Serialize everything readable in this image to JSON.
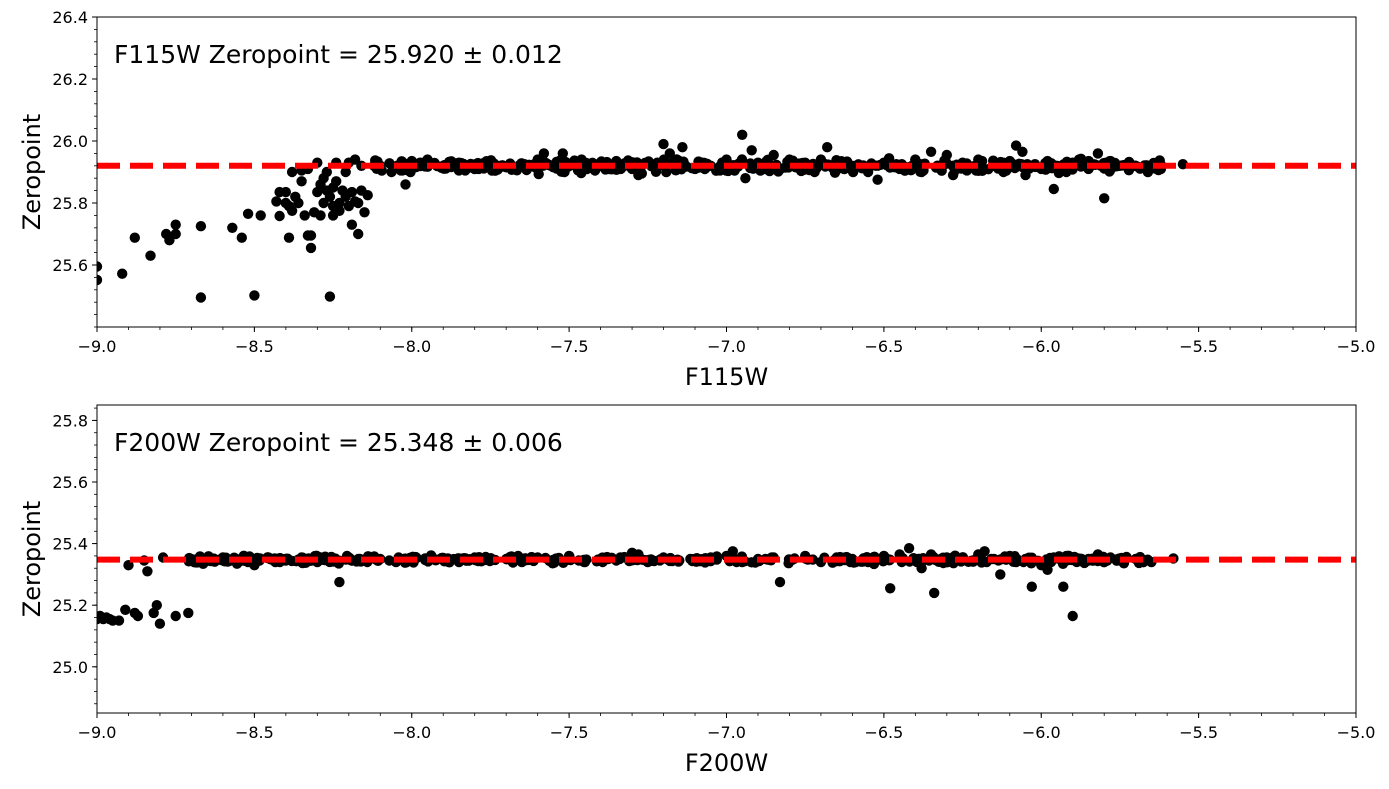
{
  "chart_data": [
    {
      "type": "scatter",
      "annotation": "F115W Zeropoint = 25.920 ± 0.012",
      "xlabel": "F115W",
      "ylabel": "Zeropoint",
      "xlim": [
        -9.0,
        -5.0
      ],
      "ylim": [
        25.4,
        26.4
      ],
      "xticks": [
        -9.0,
        -8.5,
        -8.0,
        -7.5,
        -7.0,
        -6.5,
        -6.0,
        -5.5,
        -5.0
      ],
      "xtick_labels": [
        "−9.0",
        "−8.5",
        "−8.0",
        "−7.5",
        "−7.0",
        "−6.5",
        "−6.0",
        "−5.5",
        "−5.0"
      ],
      "yticks": [
        25.6,
        25.8,
        26.0,
        26.2,
        26.4
      ],
      "ytick_labels": [
        "25.6",
        "25.8",
        "26.0",
        "26.2",
        "26.4"
      ],
      "zeropoint_line": {
        "y": 25.92,
        "style": "dashed",
        "color": "#ff0000"
      },
      "point_color": "#000000",
      "grid": false,
      "points": [
        [
          -9.0,
          25.595
        ],
        [
          -9.0,
          25.552
        ],
        [
          -8.92,
          25.572
        ],
        [
          -8.88,
          25.688
        ],
        [
          -8.83,
          25.63
        ],
        [
          -8.78,
          25.7
        ],
        [
          -8.77,
          25.68
        ],
        [
          -8.75,
          25.73
        ],
        [
          -8.75,
          25.7
        ],
        [
          -8.67,
          25.725
        ],
        [
          -8.67,
          25.495
        ],
        [
          -8.57,
          25.72
        ],
        [
          -8.54,
          25.688
        ],
        [
          -8.52,
          25.765
        ],
        [
          -8.5,
          25.502
        ],
        [
          -8.48,
          25.76
        ],
        [
          -8.43,
          25.805
        ],
        [
          -8.42,
          25.758
        ],
        [
          -8.42,
          25.835
        ],
        [
          -8.4,
          25.8
        ],
        [
          -8.4,
          25.835
        ],
        [
          -8.39,
          25.79
        ],
        [
          -8.39,
          25.688
        ],
        [
          -8.38,
          25.9
        ],
        [
          -8.38,
          25.775
        ],
        [
          -8.37,
          25.82
        ],
        [
          -8.36,
          25.8
        ],
        [
          -8.35,
          25.87
        ],
        [
          -8.35,
          25.905
        ],
        [
          -8.34,
          25.76
        ],
        [
          -8.33,
          25.695
        ],
        [
          -8.33,
          25.91
        ],
        [
          -8.32,
          25.655
        ],
        [
          -8.32,
          25.695
        ],
        [
          -8.31,
          25.77
        ],
        [
          -8.3,
          25.835
        ],
        [
          -8.3,
          25.93
        ],
        [
          -8.29,
          25.86
        ],
        [
          -8.29,
          25.76
        ],
        [
          -8.28,
          25.88
        ],
        [
          -8.28,
          25.8
        ],
        [
          -8.27,
          25.84
        ],
        [
          -8.27,
          25.9
        ],
        [
          -8.26,
          25.82
        ],
        [
          -8.26,
          25.498
        ],
        [
          -8.25,
          25.85
        ],
        [
          -8.25,
          25.79
        ],
        [
          -8.25,
          25.76
        ],
        [
          -8.24,
          25.87
        ],
        [
          -8.24,
          25.93
        ],
        [
          -8.23,
          25.8
        ],
        [
          -8.23,
          25.775
        ],
        [
          -8.22,
          25.84
        ],
        [
          -8.21,
          25.82
        ],
        [
          -8.21,
          25.9
        ],
        [
          -8.2,
          25.79
        ],
        [
          -8.2,
          25.93
        ],
        [
          -8.19,
          25.73
        ],
        [
          -8.19,
          25.835
        ],
        [
          -8.18,
          25.805
        ],
        [
          -8.18,
          25.94
        ],
        [
          -8.17,
          25.7
        ],
        [
          -8.17,
          25.8
        ],
        [
          -8.16,
          25.84
        ],
        [
          -8.16,
          25.92
        ],
        [
          -8.15,
          25.77
        ],
        [
          -8.14,
          25.825
        ],
        [
          -8.12,
          25.92
        ],
        [
          -8.1,
          25.92
        ],
        [
          -8.03,
          25.905
        ],
        [
          -8.02,
          25.86
        ],
        [
          -8.0,
          25.935
        ],
        [
          -7.95,
          25.94
        ],
        [
          -7.9,
          25.92
        ],
        [
          -7.85,
          25.93
        ],
        [
          -7.8,
          25.91
        ],
        [
          -7.75,
          25.935
        ],
        [
          -7.7,
          25.915
        ],
        [
          -7.65,
          25.92
        ],
        [
          -7.6,
          25.94
        ],
        [
          -7.58,
          25.96
        ],
        [
          -7.55,
          25.915
        ],
        [
          -7.52,
          25.96
        ],
        [
          -7.5,
          25.925
        ],
        [
          -7.45,
          25.92
        ],
        [
          -7.4,
          25.93
        ],
        [
          -7.35,
          25.935
        ],
        [
          -7.3,
          25.91
        ],
        [
          -7.28,
          25.89
        ],
        [
          -7.25,
          25.93
        ],
        [
          -7.22,
          25.93
        ],
        [
          -7.2,
          25.99
        ],
        [
          -7.18,
          25.96
        ],
        [
          -7.15,
          25.935
        ],
        [
          -7.14,
          25.98
        ],
        [
          -7.1,
          25.91
        ],
        [
          -7.05,
          25.92
        ],
        [
          -7.0,
          25.94
        ],
        [
          -6.98,
          25.91
        ],
        [
          -6.95,
          26.02
        ],
        [
          -6.94,
          25.88
        ],
        [
          -6.92,
          25.97
        ],
        [
          -6.9,
          25.93
        ],
        [
          -6.88,
          25.91
        ],
        [
          -6.85,
          25.955
        ],
        [
          -6.8,
          25.94
        ],
        [
          -6.78,
          25.915
        ],
        [
          -6.75,
          25.93
        ],
        [
          -6.72,
          25.9
        ],
        [
          -6.7,
          25.94
        ],
        [
          -6.68,
          25.98
        ],
        [
          -6.65,
          25.93
        ],
        [
          -6.6,
          25.92
        ],
        [
          -6.55,
          25.9
        ],
        [
          -6.52,
          25.875
        ],
        [
          -6.5,
          25.93
        ],
        [
          -6.45,
          25.91
        ],
        [
          -6.4,
          25.94
        ],
        [
          -6.38,
          25.9
        ],
        [
          -6.35,
          25.965
        ],
        [
          -6.32,
          25.91
        ],
        [
          -6.3,
          25.955
        ],
        [
          -6.28,
          25.89
        ],
        [
          -6.25,
          25.93
        ],
        [
          -6.22,
          25.915
        ],
        [
          -6.2,
          25.94
        ],
        [
          -6.15,
          25.92
        ],
        [
          -6.12,
          25.9
        ],
        [
          -6.1,
          25.935
        ],
        [
          -6.08,
          25.985
        ],
        [
          -6.06,
          25.965
        ],
        [
          -6.05,
          25.89
        ],
        [
          -6.02,
          25.925
        ],
        [
          -6.0,
          25.91
        ],
        [
          -5.98,
          25.935
        ],
        [
          -5.96,
          25.845
        ],
        [
          -5.95,
          25.92
        ],
        [
          -5.92,
          25.9
        ],
        [
          -5.9,
          25.93
        ],
        [
          -5.88,
          25.94
        ],
        [
          -5.85,
          25.91
        ],
        [
          -5.82,
          25.96
        ],
        [
          -5.8,
          25.815
        ],
        [
          -5.78,
          25.935
        ],
        [
          -5.75,
          25.92
        ],
        [
          -5.72,
          25.91
        ],
        [
          -5.7,
          25.92
        ],
        [
          -5.65,
          25.92
        ],
        [
          -5.62,
          25.91
        ],
        [
          -5.55,
          25.925
        ]
      ],
      "dense_band": {
        "x_range": [
          -8.12,
          -5.62
        ],
        "y_center": 25.92,
        "y_spread": 0.02
      }
    },
    {
      "type": "scatter",
      "annotation": "F200W Zeropoint = 25.348 ± 0.006",
      "xlabel": "F200W",
      "ylabel": "Zeropoint",
      "xlim": [
        -9.0,
        -5.0
      ],
      "ylim": [
        24.85,
        25.85
      ],
      "xticks": [
        -9.0,
        -8.5,
        -8.0,
        -7.5,
        -7.0,
        -6.5,
        -6.0,
        -5.5,
        -5.0
      ],
      "xtick_labels": [
        "−9.0",
        "−8.5",
        "−8.0",
        "−7.5",
        "−7.0",
        "−6.5",
        "−6.0",
        "−5.5",
        "−5.0"
      ],
      "yticks": [
        25.0,
        25.2,
        25.4,
        25.6,
        25.8
      ],
      "ytick_labels": [
        "25.0",
        "25.2",
        "25.4",
        "25.6",
        "25.8"
      ],
      "zeropoint_line": {
        "y": 25.348,
        "style": "dashed",
        "color": "#ff0000"
      },
      "point_color": "#000000",
      "grid": false,
      "points": [
        [
          -9.0,
          25.155
        ],
        [
          -8.99,
          25.165
        ],
        [
          -8.98,
          25.155
        ],
        [
          -8.97,
          25.16
        ],
        [
          -8.96,
          25.155
        ],
        [
          -8.95,
          25.15
        ],
        [
          -8.93,
          25.15
        ],
        [
          -8.91,
          25.185
        ],
        [
          -8.9,
          25.33
        ],
        [
          -8.88,
          25.175
        ],
        [
          -8.87,
          25.165
        ],
        [
          -8.85,
          25.345
        ],
        [
          -8.84,
          25.31
        ],
        [
          -8.82,
          25.175
        ],
        [
          -8.81,
          25.2
        ],
        [
          -8.8,
          25.14
        ],
        [
          -8.79,
          25.355
        ],
        [
          -8.75,
          25.165
        ],
        [
          -8.71,
          25.175
        ],
        [
          -8.7,
          25.345
        ],
        [
          -8.65,
          25.35
        ],
        [
          -8.6,
          25.355
        ],
        [
          -8.55,
          25.34
        ],
        [
          -8.5,
          25.33
        ],
        [
          -8.45,
          25.35
        ],
        [
          -8.4,
          25.345
        ],
        [
          -8.35,
          25.355
        ],
        [
          -8.3,
          25.34
        ],
        [
          -8.25,
          25.35
        ],
        [
          -8.23,
          25.275
        ],
        [
          -8.2,
          25.355
        ],
        [
          -8.15,
          25.345
        ],
        [
          -8.1,
          25.35
        ],
        [
          -8.05,
          25.34
        ],
        [
          -8.0,
          25.355
        ],
        [
          -7.95,
          25.345
        ],
        [
          -7.9,
          25.35
        ],
        [
          -7.85,
          25.34
        ],
        [
          -7.8,
          25.355
        ],
        [
          -7.75,
          25.345
        ],
        [
          -7.7,
          25.35
        ],
        [
          -7.65,
          25.34
        ],
        [
          -7.6,
          25.355
        ],
        [
          -7.55,
          25.345
        ],
        [
          -7.5,
          25.36
        ],
        [
          -7.45,
          25.34
        ],
        [
          -7.4,
          25.35
        ],
        [
          -7.35,
          25.345
        ],
        [
          -7.3,
          25.37
        ],
        [
          -7.28,
          25.365
        ],
        [
          -7.25,
          25.34
        ],
        [
          -7.2,
          25.355
        ],
        [
          -7.15,
          25.345
        ],
        [
          -7.1,
          25.35
        ],
        [
          -7.05,
          25.355
        ],
        [
          -7.0,
          25.36
        ],
        [
          -6.98,
          25.375
        ],
        [
          -6.95,
          25.34
        ],
        [
          -6.9,
          25.35
        ],
        [
          -6.85,
          25.355
        ],
        [
          -6.83,
          25.275
        ],
        [
          -6.8,
          25.345
        ],
        [
          -6.75,
          25.36
        ],
        [
          -6.7,
          25.34
        ],
        [
          -6.65,
          25.355
        ],
        [
          -6.6,
          25.35
        ],
        [
          -6.55,
          25.34
        ],
        [
          -6.5,
          25.36
        ],
        [
          -6.48,
          25.255
        ],
        [
          -6.45,
          25.365
        ],
        [
          -6.42,
          25.385
        ],
        [
          -6.4,
          25.35
        ],
        [
          -6.38,
          25.32
        ],
        [
          -6.35,
          25.365
        ],
        [
          -6.34,
          25.24
        ],
        [
          -6.3,
          25.34
        ],
        [
          -6.25,
          25.355
        ],
        [
          -6.2,
          25.365
        ],
        [
          -6.18,
          25.375
        ],
        [
          -6.15,
          25.35
        ],
        [
          -6.13,
          25.3
        ],
        [
          -6.1,
          25.36
        ],
        [
          -6.08,
          25.34
        ],
        [
          -6.05,
          25.35
        ],
        [
          -6.03,
          25.26
        ],
        [
          -6.0,
          25.33
        ],
        [
          -5.98,
          25.315
        ],
        [
          -5.96,
          25.355
        ],
        [
          -5.93,
          25.26
        ],
        [
          -5.92,
          25.36
        ],
        [
          -5.9,
          25.165
        ],
        [
          -5.88,
          25.345
        ],
        [
          -5.85,
          25.35
        ],
        [
          -5.82,
          25.365
        ],
        [
          -5.8,
          25.34
        ],
        [
          -5.78,
          25.355
        ],
        [
          -5.75,
          25.345
        ],
        [
          -5.7,
          25.35
        ],
        [
          -5.65,
          25.34
        ],
        [
          -5.58,
          25.352
        ]
      ],
      "dense_band": {
        "x_range": [
          -8.72,
          -5.66
        ],
        "y_center": 25.348,
        "y_spread": 0.012
      }
    }
  ]
}
